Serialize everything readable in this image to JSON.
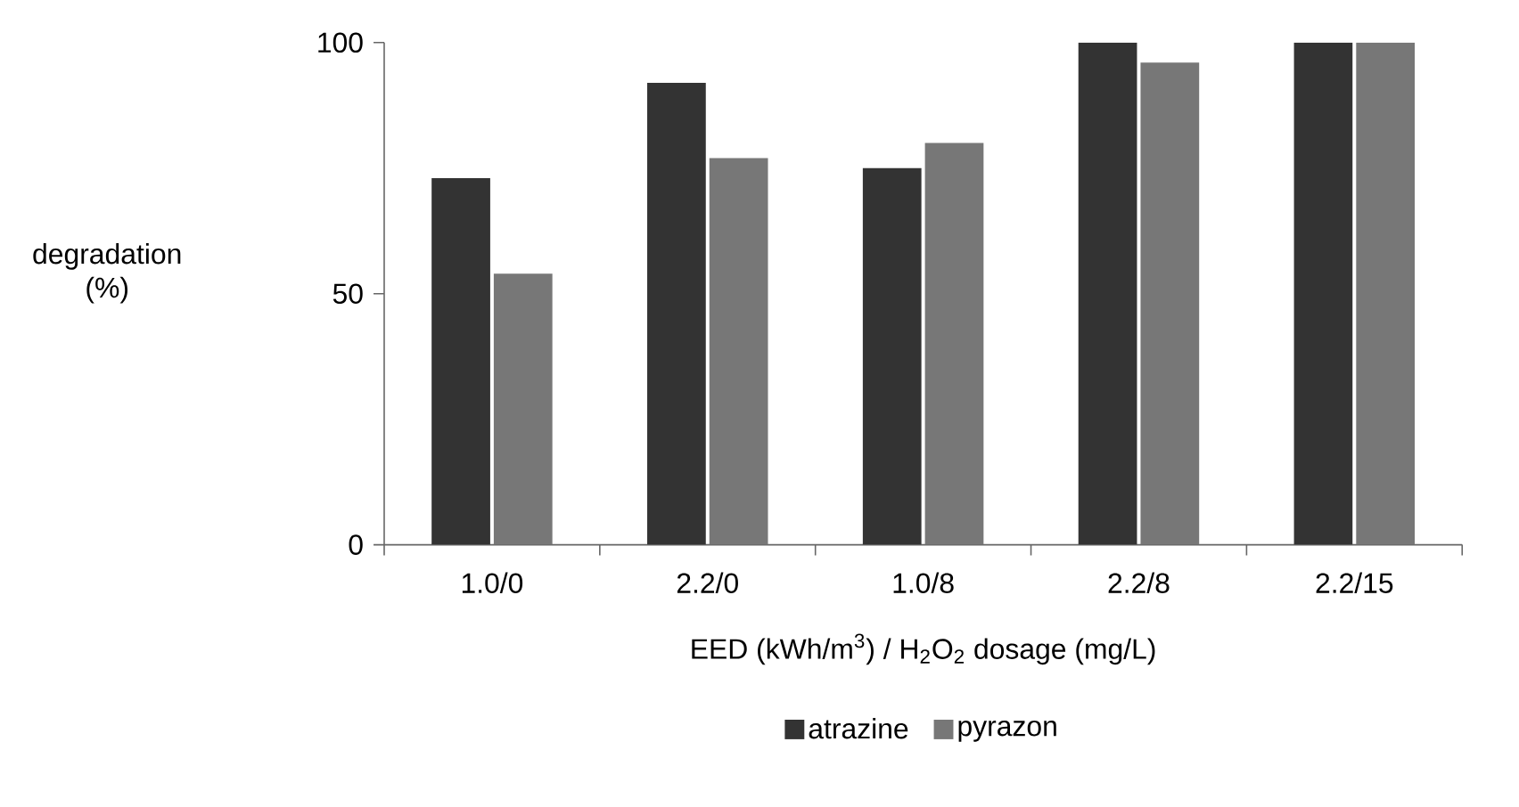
{
  "chart_data": {
    "type": "bar",
    "xlabel": "EED (kWh/m$^{3}$) / H$_{2}$O$_{2}$ dosage (mg/L)",
    "ylabel": "degradation (%)",
    "categories": [
      "1.0/0",
      "2.2/0",
      "1.0/8",
      "2.2/8",
      "2.2/15"
    ],
    "series": [
      {
        "name": "atrazine",
        "color": "#333333",
        "values": [
          73,
          92,
          75,
          100,
          100
        ]
      },
      {
        "name": "pyrazon",
        "color": "#777777",
        "values": [
          54,
          77,
          80,
          96,
          100
        ]
      }
    ],
    "ylim": [
      0,
      100
    ],
    "yticks": [
      0,
      50,
      100
    ],
    "grid": false,
    "legend": "bottom"
  }
}
